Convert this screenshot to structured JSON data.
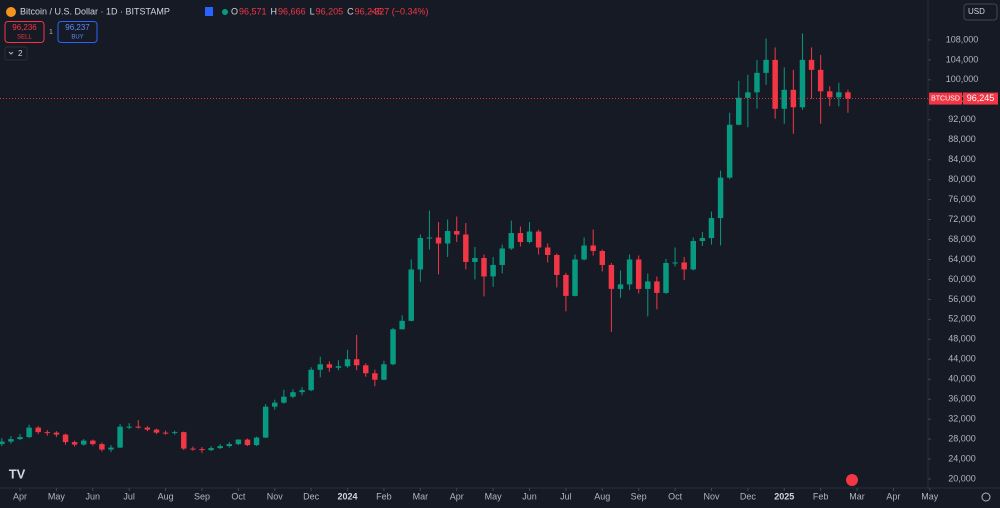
{
  "header": {
    "title": "Bitcoin / U.S. Dollar · 1D · BITSTAMP",
    "ohlc": [
      {
        "key": "O",
        "value": "96,571"
      },
      {
        "key": "H",
        "value": "96,666"
      },
      {
        "key": "L",
        "value": "96,205"
      },
      {
        "key": "C",
        "value": "96,245"
      }
    ],
    "change": "−327 (−0.34%)"
  },
  "trade": {
    "sell": {
      "price": "96,236",
      "label": "SELL"
    },
    "qty": "1",
    "buy": {
      "price": "96,237",
      "label": "BUY"
    }
  },
  "indicators": "2",
  "currency": "USD",
  "chart_data": {
    "type": "candlestick",
    "symbol": "BTCUSD",
    "up_color": "#089981",
    "down_color": "#f23645",
    "last_price": {
      "value": 96245,
      "label": "96,245"
    },
    "grid": false,
    "xlim": [
      3.45,
      28.95
    ],
    "ylim": [
      18200,
      116000
    ],
    "xticks": [
      {
        "value": 4,
        "label": "Apr"
      },
      {
        "value": 5,
        "label": "May"
      },
      {
        "value": 6,
        "label": "Jun"
      },
      {
        "value": 7,
        "label": "Jul"
      },
      {
        "value": 8,
        "label": "Aug"
      },
      {
        "value": 9,
        "label": "Sep"
      },
      {
        "value": 10,
        "label": "Oct"
      },
      {
        "value": 11,
        "label": "Nov"
      },
      {
        "value": 12,
        "label": "Dec"
      },
      {
        "value": 13,
        "label": "2024"
      },
      {
        "value": 14,
        "label": "Feb"
      },
      {
        "value": 15,
        "label": "Mar"
      },
      {
        "value": 16,
        "label": "Apr"
      },
      {
        "value": 17,
        "label": "May"
      },
      {
        "value": 18,
        "label": "Jun"
      },
      {
        "value": 19,
        "label": "Jul"
      },
      {
        "value": 20,
        "label": "Aug"
      },
      {
        "value": 21,
        "label": "Sep"
      },
      {
        "value": 22,
        "label": "Oct"
      },
      {
        "value": 23,
        "label": "Nov"
      },
      {
        "value": 24,
        "label": "Dec"
      },
      {
        "value": 25,
        "label": "2025"
      },
      {
        "value": 26,
        "label": "Feb"
      },
      {
        "value": 27,
        "label": "Mar"
      },
      {
        "value": 28,
        "label": "Apr"
      },
      {
        "value": 29,
        "label": "May"
      }
    ],
    "yticks": [
      {
        "value": 20000,
        "label": "20,000"
      },
      {
        "value": 24000,
        "label": "24,000"
      },
      {
        "value": 28000,
        "label": "28,000"
      },
      {
        "value": 32000,
        "label": "32,000"
      },
      {
        "value": 36000,
        "label": "36,000"
      },
      {
        "value": 40000,
        "label": "40,000"
      },
      {
        "value": 44000,
        "label": "44,000"
      },
      {
        "value": 48000,
        "label": "48,000"
      },
      {
        "value": 52000,
        "label": "52,000"
      },
      {
        "value": 56000,
        "label": "56,000"
      },
      {
        "value": 60000,
        "label": "60,000"
      },
      {
        "value": 64000,
        "label": "64,000"
      },
      {
        "value": 68000,
        "label": "68,000"
      },
      {
        "value": 72000,
        "label": "72,000"
      },
      {
        "value": 76000,
        "label": "76,000"
      },
      {
        "value": 80000,
        "label": "80,000"
      },
      {
        "value": 84000,
        "label": "84,000"
      },
      {
        "value": 88000,
        "label": "88,000"
      },
      {
        "value": 92000,
        "label": "92,000"
      },
      {
        "value": 96000,
        "label": "96,000"
      },
      {
        "value": 100000,
        "label": "100,000"
      },
      {
        "value": 104000,
        "label": "104,000"
      },
      {
        "value": 108000,
        "label": "108,000"
      }
    ],
    "x": [
      3.5,
      3.75,
      4,
      4.25,
      4.5,
      4.75,
      5,
      5.25,
      5.5,
      5.75,
      6,
      6.25,
      6.5,
      6.75,
      7,
      7.25,
      7.5,
      7.75,
      8,
      8.25,
      8.5,
      8.75,
      9,
      9.25,
      9.5,
      9.75,
      10,
      10.25,
      10.5,
      10.75,
      11,
      11.25,
      11.5,
      11.75,
      12,
      12.25,
      12.5,
      12.75,
      13,
      13.25,
      13.5,
      13.75,
      14,
      14.25,
      14.5,
      14.75,
      15,
      15.25,
      15.5,
      15.75,
      16,
      16.25,
      16.5,
      16.75,
      17,
      17.25,
      17.5,
      17.75,
      18,
      18.25,
      18.5,
      18.75,
      19,
      19.25,
      19.5,
      19.75,
      20,
      20.25,
      20.5,
      20.75,
      21,
      21.25,
      21.5,
      21.75,
      22,
      22.25,
      22.5,
      22.75,
      23,
      23.25,
      23.5,
      23.75,
      24,
      24.25,
      24.5,
      24.75,
      25,
      25.25,
      25.5,
      25.75,
      26,
      26.25,
      26.5,
      26.75
    ],
    "ohlc": [
      [
        27000,
        28200,
        26600,
        27500
      ],
      [
        27500,
        28600,
        27100,
        28000
      ],
      [
        28000,
        29000,
        27800,
        28400
      ],
      [
        28400,
        30900,
        28200,
        30300
      ],
      [
        30300,
        30600,
        29000,
        29400
      ],
      [
        29400,
        29800,
        28700,
        29300
      ],
      [
        29300,
        29600,
        28400,
        28900
      ],
      [
        28900,
        29100,
        26900,
        27400
      ],
      [
        27400,
        27700,
        26500,
        26900
      ],
      [
        26900,
        28000,
        26700,
        27700
      ],
      [
        27700,
        27900,
        26700,
        27000
      ],
      [
        27000,
        27300,
        25500,
        25900
      ],
      [
        25900,
        26800,
        25400,
        26300
      ],
      [
        26300,
        31000,
        26200,
        30500
      ],
      [
        30500,
        31200,
        30000,
        30500
      ],
      [
        30500,
        31800,
        30100,
        30300
      ],
      [
        30300,
        30600,
        29600,
        29900
      ],
      [
        29900,
        30100,
        29000,
        29300
      ],
      [
        29300,
        29700,
        28900,
        29200
      ],
      [
        29200,
        29700,
        28900,
        29400
      ],
      [
        29400,
        29500,
        25800,
        26100
      ],
      [
        26100,
        26500,
        25700,
        26000
      ],
      [
        26000,
        26400,
        25200,
        25800
      ],
      [
        25800,
        26600,
        25600,
        26200
      ],
      [
        26200,
        27000,
        26000,
        26600
      ],
      [
        26600,
        27400,
        26300,
        27000
      ],
      [
        27000,
        28000,
        26800,
        27900
      ],
      [
        27900,
        28100,
        26600,
        26800
      ],
      [
        26800,
        28500,
        26600,
        28300
      ],
      [
        28300,
        35000,
        28200,
        34500
      ],
      [
        34500,
        35900,
        33900,
        35300
      ],
      [
        35300,
        37900,
        35100,
        36500
      ],
      [
        36500,
        38000,
        36200,
        37400
      ],
      [
        37400,
        38400,
        36800,
        37800
      ],
      [
        37800,
        42400,
        37600,
        41900
      ],
      [
        41900,
        44500,
        40400,
        43000
      ],
      [
        43000,
        43600,
        41500,
        42300
      ],
      [
        42300,
        43800,
        41800,
        42600
      ],
      [
        42600,
        45900,
        42300,
        44000
      ],
      [
        44000,
        48900,
        41800,
        42800
      ],
      [
        42800,
        43200,
        40500,
        41200
      ],
      [
        41200,
        41900,
        38600,
        39900
      ],
      [
        39900,
        43700,
        39800,
        43000
      ],
      [
        43000,
        50300,
        42800,
        50000
      ],
      [
        50000,
        52800,
        50000,
        51700
      ],
      [
        51700,
        64000,
        51600,
        62000
      ],
      [
        62000,
        69000,
        59500,
        68300
      ],
      [
        68300,
        73800,
        66000,
        68400
      ],
      [
        68400,
        71500,
        61000,
        67200
      ],
      [
        67200,
        72000,
        64500,
        69700
      ],
      [
        69700,
        72600,
        67500,
        69000
      ],
      [
        69000,
        71300,
        62000,
        63500
      ],
      [
        63500,
        66500,
        60000,
        64300
      ],
      [
        64300,
        65000,
        56600,
        60600
      ],
      [
        60600,
        64500,
        58500,
        62900
      ],
      [
        62900,
        67000,
        61200,
        66200
      ],
      [
        66200,
        71800,
        65900,
        69300
      ],
      [
        69300,
        70600,
        66600,
        67500
      ],
      [
        67500,
        71500,
        67200,
        69600
      ],
      [
        69600,
        70000,
        65000,
        66400
      ],
      [
        66400,
        67200,
        63400,
        64900
      ],
      [
        64900,
        65200,
        58400,
        60900
      ],
      [
        60900,
        61300,
        53600,
        56700
      ],
      [
        56700,
        65000,
        56600,
        64000
      ],
      [
        64000,
        68400,
        63800,
        66800
      ],
      [
        66800,
        70000,
        64800,
        65700
      ],
      [
        65700,
        66000,
        61600,
        62900
      ],
      [
        62900,
        63300,
        49500,
        58100
      ],
      [
        58100,
        61800,
        56300,
        59000
      ],
      [
        59000,
        65000,
        57900,
        64000
      ],
      [
        64000,
        64800,
        57200,
        58100
      ],
      [
        58100,
        61200,
        52600,
        59600
      ],
      [
        59600,
        60600,
        54000,
        57300
      ],
      [
        57300,
        64100,
        57100,
        63300
      ],
      [
        63300,
        66400,
        62600,
        63400
      ],
      [
        63400,
        64500,
        59900,
        62000
      ],
      [
        62000,
        68400,
        61800,
        67700
      ],
      [
        67700,
        69500,
        66700,
        68300
      ],
      [
        68300,
        73600,
        67000,
        72300
      ],
      [
        72300,
        81800,
        66800,
        80400
      ],
      [
        80400,
        93400,
        80100,
        91000
      ],
      [
        91000,
        99800,
        90900,
        96400
      ],
      [
        96400,
        101000,
        90500,
        97500
      ],
      [
        97500,
        104000,
        94200,
        101400
      ],
      [
        101400,
        108300,
        99000,
        104000
      ],
      [
        104000,
        106500,
        92200,
        94200
      ],
      [
        94200,
        102500,
        91200,
        98000
      ],
      [
        98000,
        102000,
        89200,
        94500
      ],
      [
        94500,
        109300,
        94000,
        104000
      ],
      [
        104000,
        106500,
        96200,
        102000
      ],
      [
        102000,
        105000,
        91200,
        97700
      ],
      [
        97700,
        98700,
        94700,
        96500
      ],
      [
        96500,
        99400,
        94700,
        97500
      ],
      [
        97500,
        98000,
        93400,
        96245
      ]
    ]
  }
}
